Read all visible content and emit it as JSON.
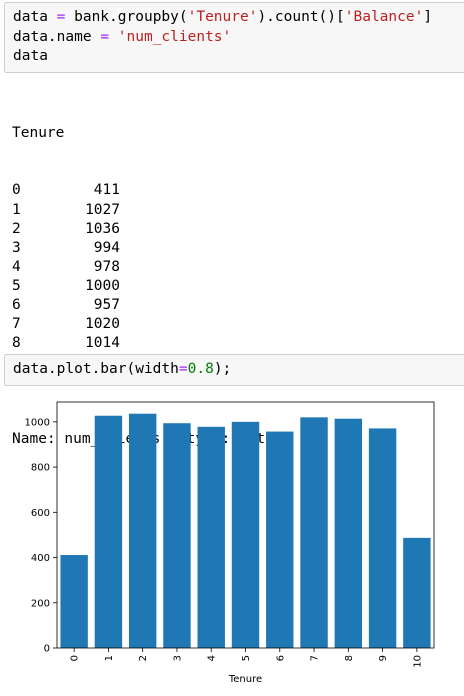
{
  "cells": [
    {
      "lines": [
        [
          {
            "text": "data ",
            "color": "#000000"
          },
          {
            "text": "=",
            "color": "#aa22ff"
          },
          {
            "text": " bank.groupby(",
            "color": "#000000"
          },
          {
            "text": "'Tenure'",
            "color": "#ba2121"
          },
          {
            "text": ").count()[",
            "color": "#000000"
          },
          {
            "text": "'Balance'",
            "color": "#ba2121"
          },
          {
            "text": "]",
            "color": "#000000"
          }
        ],
        [
          {
            "text": "data.name ",
            "color": "#000000"
          },
          {
            "text": "=",
            "color": "#aa22ff"
          },
          {
            "text": " ",
            "color": "#000000"
          },
          {
            "text": "'num_clients'",
            "color": "#ba2121"
          }
        ],
        [
          {
            "text": "data",
            "color": "#000000"
          }
        ]
      ]
    },
    {
      "lines": [
        [
          {
            "text": "data.plot.bar(width",
            "color": "#000000"
          },
          {
            "text": "=",
            "color": "#aa22ff"
          },
          {
            "text": "0.8",
            "color": "#008000"
          },
          {
            "text": ");",
            "color": "#000000"
          }
        ]
      ]
    }
  ],
  "output": {
    "footer": "Name: num_clients, dtype: int64"
  },
  "chart_data": {
    "type": "bar",
    "xlabel": "Tenure",
    "categories": [
      "0",
      "1",
      "2",
      "3",
      "4",
      "5",
      "6",
      "7",
      "8",
      "9",
      "10"
    ],
    "values": [
      411,
      1027,
      1036,
      994,
      978,
      1000,
      957,
      1020,
      1014,
      971,
      487
    ],
    "color": "#1f77b4",
    "bar_width": 0.8,
    "ylim": [
      0,
      1087.8
    ],
    "yticks": [
      0,
      200,
      400,
      600,
      800,
      1000
    ],
    "grid": false
  }
}
